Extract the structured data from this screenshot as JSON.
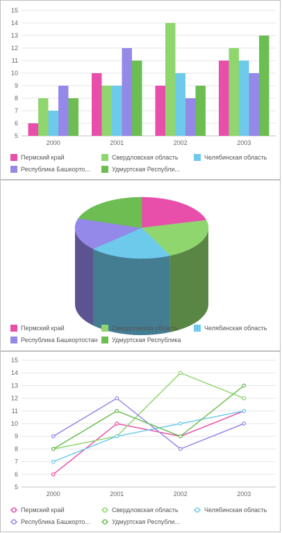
{
  "colors": {
    "series": [
      "#e84fab",
      "#8fd66f",
      "#6ecaeb",
      "#9488e8",
      "#6cbd52"
    ],
    "grid": "#e6e6e6",
    "axis": "#bfbfbf"
  },
  "chart_data": [
    {
      "type": "bar",
      "categories": [
        "2000",
        "2001",
        "2002",
        "2003"
      ],
      "ylim": [
        5,
        15
      ],
      "yticks": [
        "5",
        "6",
        "7",
        "8",
        "9",
        "10",
        "11",
        "12",
        "13",
        "14",
        "15"
      ],
      "grid": true,
      "legend_position": "bottom",
      "series": [
        {
          "name": "Пермский край",
          "values": [
            6,
            10,
            9,
            11
          ]
        },
        {
          "name": "Свердловская область",
          "values": [
            8,
            9,
            14,
            12
          ]
        },
        {
          "name": "Челябинская область",
          "values": [
            7,
            9,
            10,
            11
          ]
        },
        {
          "name": "Республика Башкорто...",
          "values": [
            9,
            12,
            8,
            10
          ]
        },
        {
          "name": "Удмуртская Республи...",
          "values": [
            8,
            11,
            9,
            13
          ]
        }
      ]
    },
    {
      "type": "pie",
      "style": "3d",
      "legend_position": "bottom",
      "labels": [
        "Пермский край",
        "Свердловская область",
        "Челябинская область",
        "Республика Башкортостан",
        "Удмуртская Республика"
      ],
      "values": [
        21,
        22,
        20,
        17,
        20
      ]
    },
    {
      "type": "line",
      "categories": [
        "2000",
        "2001",
        "2002",
        "2003"
      ],
      "ylim": [
        5,
        15
      ],
      "yticks": [
        "5",
        "6",
        "7",
        "8",
        "9",
        "10",
        "11",
        "12",
        "13",
        "14",
        "15"
      ],
      "grid": true,
      "legend_position": "bottom",
      "series": [
        {
          "name": "Пермский край",
          "values": [
            6,
            10,
            9,
            11
          ]
        },
        {
          "name": "Свердловская область",
          "values": [
            8,
            9,
            14,
            12
          ]
        },
        {
          "name": "Челябинская область",
          "values": [
            7,
            9,
            10,
            11
          ]
        },
        {
          "name": "Республика Башкорто...",
          "values": [
            9,
            12,
            8,
            10
          ]
        },
        {
          "name": "Удмуртская Республи...",
          "values": [
            8,
            11,
            9,
            13
          ]
        }
      ]
    }
  ]
}
